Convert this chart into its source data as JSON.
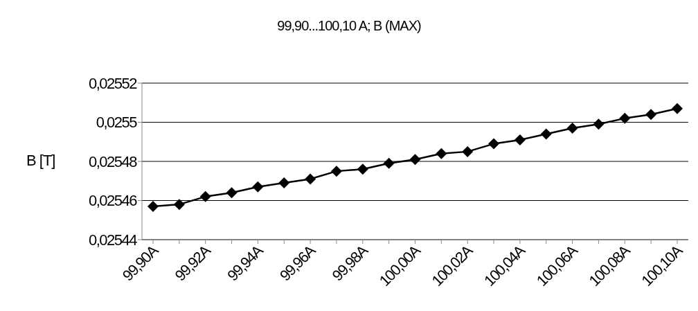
{
  "chart_data": {
    "type": "line",
    "title": "99,90...100,10 A; B (MAX)",
    "ylabel": "B [T]",
    "categories": [
      "99,90A",
      null,
      "99,92A",
      null,
      "99,94A",
      null,
      "99,96A",
      null,
      "99,98A",
      null,
      "100,00A",
      null,
      "100,02A",
      null,
      "100,04A",
      null,
      "100,06A",
      null,
      "100,08A",
      null,
      "100,10A"
    ],
    "series": [
      {
        "color": "#000000",
        "values": [
          0.025457,
          0.025458,
          0.025462,
          0.025464,
          0.025467,
          0.025469,
          0.025471,
          0.025475,
          0.025476,
          0.025479,
          0.025481,
          0.025484,
          0.025485,
          0.025489,
          0.025491,
          0.025494,
          0.025497,
          0.025499,
          0.025502,
          0.025504,
          0.025507
        ]
      }
    ],
    "ylim": [
      0.02544,
      0.02552
    ],
    "yticks": [
      {
        "value": 0.02544,
        "label": "0,02544"
      },
      {
        "value": 0.02546,
        "label": "0,02546"
      },
      {
        "value": 0.02548,
        "label": "0,02548"
      },
      {
        "value": 0.0255,
        "label": "0,0255"
      },
      {
        "value": 0.02552,
        "label": "0,02552"
      }
    ],
    "grid": "y",
    "marker": "diamond",
    "line_style": "solid",
    "legend": false
  }
}
